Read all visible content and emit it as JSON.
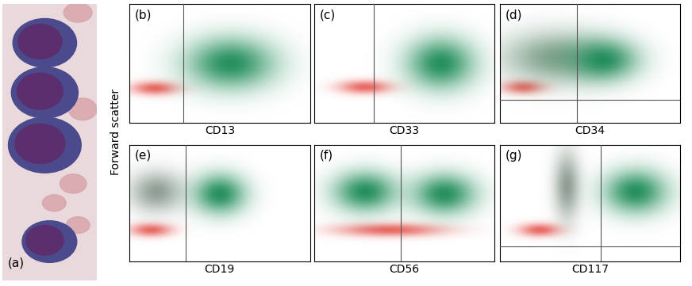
{
  "ylabel": "Forward scatter",
  "panel_a": {
    "title": "(a)"
  },
  "chart_data": [
    {
      "type": "scatter",
      "title": "(b)",
      "xlabel": "CD13",
      "xlim": [
        0,
        1
      ],
      "ylim": [
        0,
        1
      ],
      "xticks": [],
      "yticks": [],
      "tick_labels": false,
      "gates": {
        "x": 0.3
      },
      "series": [
        {
          "color": "#e8605a",
          "center": [
            0.14,
            0.29
          ],
          "spread": [
            0.09,
            0.04
          ]
        },
        {
          "color": "#1a8a55",
          "center": [
            0.56,
            0.5
          ],
          "spread": [
            0.17,
            0.15
          ]
        }
      ]
    },
    {
      "type": "scatter",
      "title": "(c)",
      "xlabel": "CD33",
      "xlim": [
        0,
        1
      ],
      "ylim": [
        0,
        1
      ],
      "xticks": [],
      "yticks": [],
      "tick_labels": false,
      "gates": {
        "x": 0.33
      },
      "series": [
        {
          "color": "#e8605a",
          "center": [
            0.28,
            0.3
          ],
          "spread": [
            0.1,
            0.04
          ]
        },
        {
          "color": "#1a8a55",
          "center": [
            0.7,
            0.5
          ],
          "spread": [
            0.13,
            0.15
          ]
        }
      ]
    },
    {
      "type": "scatter",
      "title": "(d)",
      "xlabel": "CD34",
      "xlim": [
        0,
        1
      ],
      "ylim": [
        0,
        1
      ],
      "xticks": [],
      "yticks": [],
      "tick_labels": false,
      "gates": {
        "x": 0.43,
        "y": 0.19
      },
      "series": [
        {
          "color": "#e8605a",
          "center": [
            0.13,
            0.3
          ],
          "spread": [
            0.08,
            0.04
          ]
        },
        {
          "color": "#7fa08a",
          "center": [
            0.3,
            0.55
          ],
          "spread": [
            0.2,
            0.15
          ]
        },
        {
          "color": "#1a8a55",
          "center": [
            0.57,
            0.53
          ],
          "spread": [
            0.13,
            0.12
          ]
        }
      ]
    },
    {
      "type": "scatter",
      "title": "(e)",
      "xlabel": "CD19",
      "xlim": [
        0,
        1
      ],
      "ylim": [
        0,
        1
      ],
      "xticks": [],
      "yticks": [],
      "tick_labels": false,
      "gates": {
        "x": 0.31
      },
      "series": [
        {
          "color": "#e8605a",
          "center": [
            0.12,
            0.27
          ],
          "spread": [
            0.08,
            0.04
          ]
        },
        {
          "color": "#8a9a90",
          "center": [
            0.15,
            0.6
          ],
          "spread": [
            0.1,
            0.12
          ]
        },
        {
          "color": "#1a8a55",
          "center": [
            0.5,
            0.58
          ],
          "spread": [
            0.1,
            0.12
          ]
        }
      ]
    },
    {
      "type": "scatter",
      "title": "(f)",
      "xlabel": "CD56",
      "xlim": [
        0,
        1
      ],
      "ylim": [
        0,
        1
      ],
      "xticks": [],
      "yticks": [],
      "tick_labels": false,
      "gates": {
        "x": 0.48
      },
      "series": [
        {
          "color": "#e8605a",
          "center": [
            0.42,
            0.27
          ],
          "spread": [
            0.2,
            0.04
          ]
        },
        {
          "color": "#1a8a55",
          "center": [
            0.28,
            0.6
          ],
          "spread": [
            0.12,
            0.12
          ]
        },
        {
          "color": "#1a8a55",
          "center": [
            0.72,
            0.58
          ],
          "spread": [
            0.12,
            0.12
          ]
        }
      ]
    },
    {
      "type": "scatter",
      "title": "(g)",
      "xlabel": "CD117",
      "xlim": [
        0,
        1
      ],
      "ylim": [
        0,
        1
      ],
      "xticks": [],
      "yticks": [],
      "tick_labels": false,
      "gates": {
        "x": 0.56,
        "y": 0.13
      },
      "series": [
        {
          "color": "#e8605a",
          "center": [
            0.22,
            0.27
          ],
          "spread": [
            0.08,
            0.04
          ]
        },
        {
          "color": "#8a9a90",
          "center": [
            0.37,
            0.65
          ],
          "spread": [
            0.05,
            0.2
          ]
        },
        {
          "color": "#1a8a55",
          "center": [
            0.75,
            0.6
          ],
          "spread": [
            0.12,
            0.13
          ]
        }
      ]
    }
  ]
}
